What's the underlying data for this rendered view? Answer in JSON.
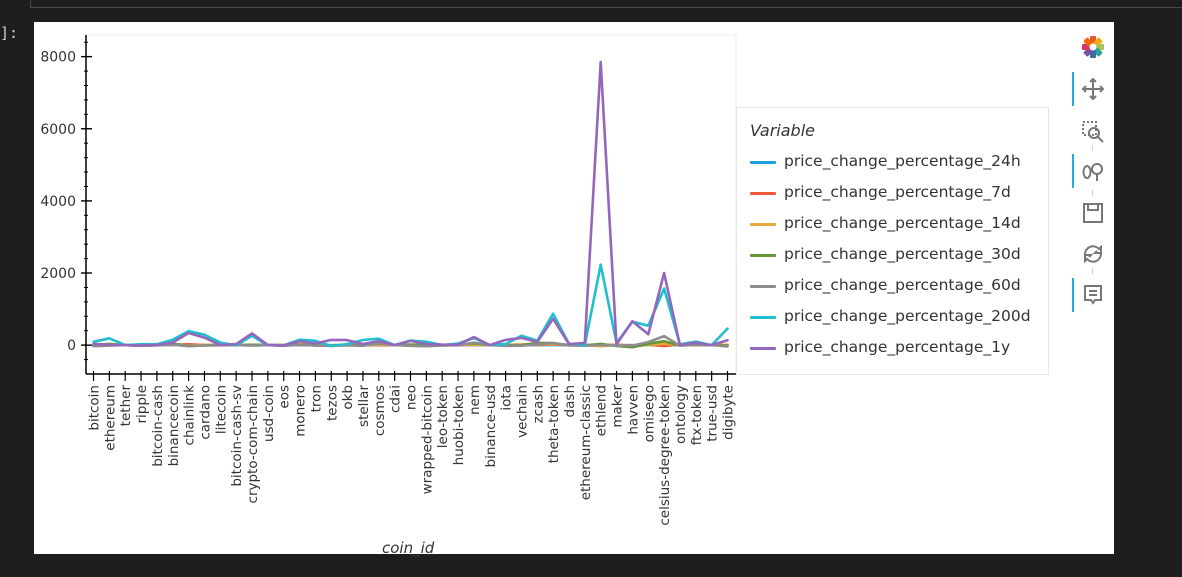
{
  "notebook": {
    "prompt_label": "]:"
  },
  "toolbar": {
    "tools": [
      {
        "name": "bokeh-logo-icon",
        "active": false
      },
      {
        "name": "pan-icon",
        "active": true
      },
      {
        "name": "box-zoom-icon",
        "active": false
      },
      {
        "name": "wheel-zoom-icon",
        "active": true
      },
      {
        "name": "save-icon",
        "active": false
      },
      {
        "name": "reset-icon",
        "active": false
      },
      {
        "name": "hover-icon",
        "active": true
      }
    ]
  },
  "chart_data": {
    "type": "line",
    "title": "",
    "xlabel": "coin_id",
    "ylabel": "",
    "ylim": [
      -800,
      8600
    ],
    "yticks": [
      0,
      2000,
      4000,
      6000,
      8000
    ],
    "grid": false,
    "legend": {
      "title": "Variable",
      "position": "right"
    },
    "categories": [
      "bitcoin",
      "ethereum",
      "tether",
      "ripple",
      "bitcoin-cash",
      "binancecoin",
      "chainlink",
      "cardano",
      "litecoin",
      "bitcoin-cash-sv",
      "crypto-com-chain",
      "usd-coin",
      "eos",
      "monero",
      "tron",
      "tezos",
      "okb",
      "stellar",
      "cosmos",
      "cdai",
      "neo",
      "wrapped-bitcoin",
      "leo-token",
      "huobi-token",
      "nem",
      "binance-usd",
      "iota",
      "vechain",
      "zcash",
      "theta-token",
      "dash",
      "ethereum-classic",
      "ethlend",
      "maker",
      "havven",
      "omisego",
      "celsius-degree-token",
      "ontology",
      "ftx-token",
      "true-usd",
      "digibyte"
    ],
    "series": [
      {
        "name": "price_change_percentage_24h",
        "color": "#1f9ddc",
        "values": [
          1,
          1,
          0,
          -1,
          2,
          1,
          2,
          1,
          1,
          1,
          0,
          0,
          0,
          1,
          1,
          -1,
          1,
          0,
          -1,
          0,
          0,
          1,
          0,
          1,
          0,
          0,
          -1,
          1,
          0,
          1,
          0,
          0,
          -1,
          0,
          -1,
          3,
          -2,
          2,
          0,
          0,
          -1
        ]
      },
      {
        "name": "price_change_percentage_7d",
        "color": "#ec5b3b",
        "values": [
          7,
          10,
          0,
          -8,
          14,
          10,
          23,
          5,
          6,
          5,
          4,
          0,
          2,
          12,
          5,
          -3,
          8,
          3,
          2,
          0,
          6,
          7,
          0,
          8,
          4,
          0,
          1,
          12,
          6,
          17,
          6,
          2,
          4,
          9,
          -12,
          12,
          -25,
          18,
          5,
          0,
          9
        ]
      },
      {
        "name": "price_change_percentage_14d",
        "color": "#e8a93a",
        "values": [
          7,
          12,
          0,
          -17,
          9,
          11,
          -14,
          2,
          10,
          2,
          3,
          0,
          2,
          31,
          6,
          -20,
          0,
          -3,
          22,
          0,
          5,
          7,
          0,
          6,
          16,
          0,
          13,
          21,
          20,
          30,
          6,
          3,
          -30,
          8,
          -29,
          6,
          40,
          5,
          13,
          0,
          12
        ]
      },
      {
        "name": "price_change_percentage_30d",
        "color": "#639636",
        "values": [
          3,
          36,
          0,
          -15,
          3,
          47,
          -23,
          -9,
          7,
          -1,
          10,
          0,
          -7,
          21,
          -11,
          -9,
          5,
          2,
          53,
          0,
          17,
          3,
          -9,
          9,
          51,
          0,
          -5,
          1,
          61,
          57,
          -6,
          -6,
          34,
          -24,
          -57,
          38,
          110,
          -9,
          8,
          0,
          -10
        ]
      },
      {
        "name": "price_change_percentage_60d",
        "color": "#8d8d8d",
        "values": [
          -29,
          -12,
          0,
          -16,
          -10,
          12,
          -30,
          -11,
          -4,
          0,
          -12,
          0,
          -17,
          12,
          -12,
          -18,
          -4,
          -18,
          50,
          0,
          -17,
          -29,
          -10,
          -4,
          68,
          0,
          -19,
          -14,
          20,
          60,
          -2,
          -15,
          4,
          -12,
          -12,
          84,
          250,
          -12,
          5,
          0,
          -34
        ]
      },
      {
        "name": "price_change_percentage_200d",
        "color": "#1fbfd0",
        "values": [
          92,
          190,
          1,
          26,
          24,
          150,
          390,
          290,
          70,
          -3,
          256,
          0,
          -3,
          150,
          120,
          -23,
          30,
          142,
          180,
          2,
          130,
          93,
          5,
          42,
          195,
          0,
          28,
          260,
          125,
          870,
          40,
          2,
          2230,
          59,
          650,
          540,
          1570,
          23,
          95,
          0,
          460
        ]
      },
      {
        "name": "price_change_percentage_1y",
        "color": "#9467bd",
        "values": [
          34,
          11,
          1,
          -9,
          7,
          74,
          338,
          208,
          5,
          29,
          327,
          0,
          -8,
          110,
          47,
          145,
          140,
          33,
          113,
          3,
          118,
          33,
          13,
          13,
          227,
          1,
          146,
          200,
          90,
          730,
          29,
          63,
          7850,
          24,
          660,
          300,
          2000,
          3,
          67,
          0,
          135
        ]
      }
    ]
  }
}
